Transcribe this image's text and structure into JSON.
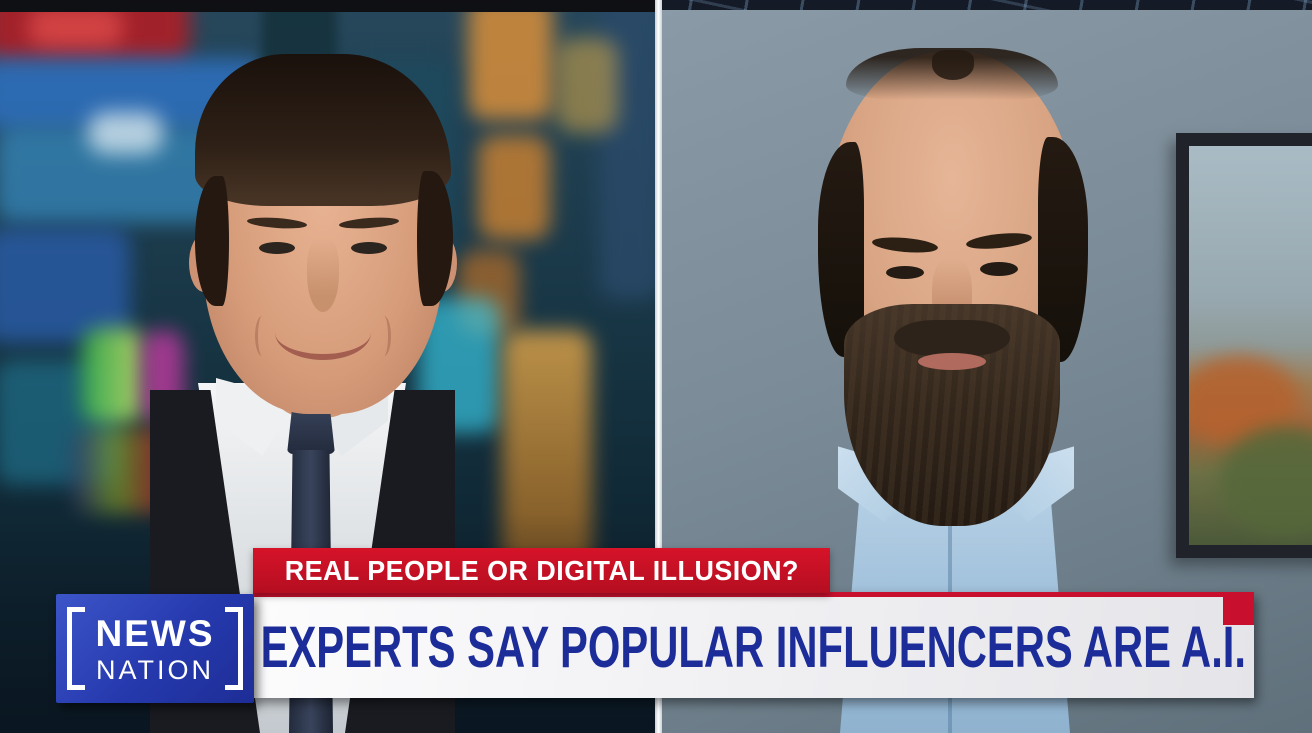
{
  "banner": {
    "kicker": "REAL PEOPLE OR DIGITAL ILLUSION?",
    "headline": "EXPERTS SAY POPULAR INFLUENCERS ARE A.I."
  },
  "logo": {
    "line1": "NEWS",
    "line2": "NATION"
  },
  "colors": {
    "banner_red": "#c8102e",
    "headline_text_blue": "#1c2d99",
    "headline_banner_white": "#efeff2",
    "logo_blue": "#2539ad",
    "divider_white": "#ffffff",
    "guest_wall_gray": "#7b8c98"
  }
}
